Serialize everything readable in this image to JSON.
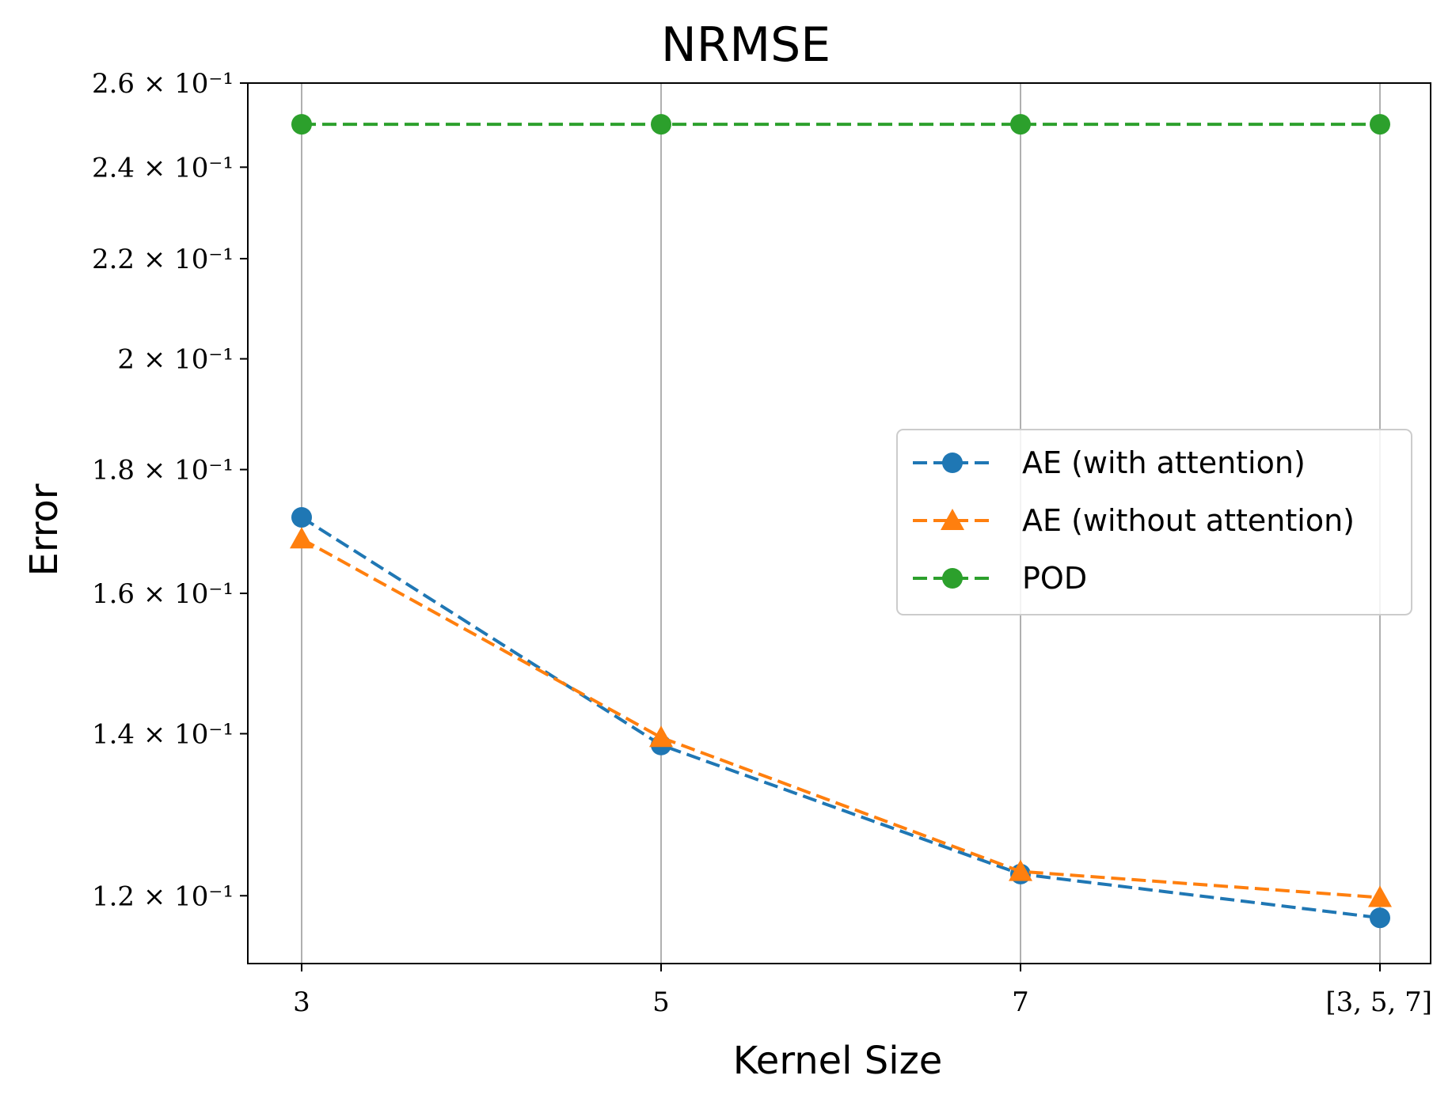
{
  "chart_data": {
    "type": "line",
    "title": "NRMSE",
    "xlabel": "Kernel Size",
    "ylabel": "Error",
    "categories": [
      "3",
      "5",
      "7",
      "[3, 5, 7]"
    ],
    "yscale": "log",
    "ylim": [
      0.1125,
      0.26
    ],
    "yticks": [
      {
        "value": 0.12,
        "label": "1.2 × 10⁻¹"
      },
      {
        "value": 0.14,
        "label": "1.4 × 10⁻¹"
      },
      {
        "value": 0.16,
        "label": "1.6 × 10⁻¹"
      },
      {
        "value": 0.18,
        "label": "1.8 × 10⁻¹"
      },
      {
        "value": 0.2,
        "label": "2 × 10⁻¹"
      },
      {
        "value": 0.22,
        "label": "2.2 × 10⁻¹"
      },
      {
        "value": 0.24,
        "label": "2.4 × 10⁻¹"
      },
      {
        "value": 0.26,
        "label": "2.6 × 10⁻¹"
      }
    ],
    "grid": "x-only",
    "legend_position": "center-right",
    "series": [
      {
        "name": "AE (with attention)",
        "color": "#1f77b4",
        "marker": "circle",
        "linestyle": "dashed",
        "values": [
          0.172,
          0.1385,
          0.1225,
          0.1175
        ]
      },
      {
        "name": "AE (without attention)",
        "color": "#ff7f0e",
        "marker": "triangle",
        "linestyle": "dashed",
        "values": [
          0.1685,
          0.1395,
          0.1228,
          0.1198
        ]
      },
      {
        "name": "POD",
        "color": "#2ca02c",
        "marker": "circle",
        "linestyle": "dashed",
        "values": [
          0.25,
          0.25,
          0.25,
          0.25
        ]
      }
    ]
  }
}
